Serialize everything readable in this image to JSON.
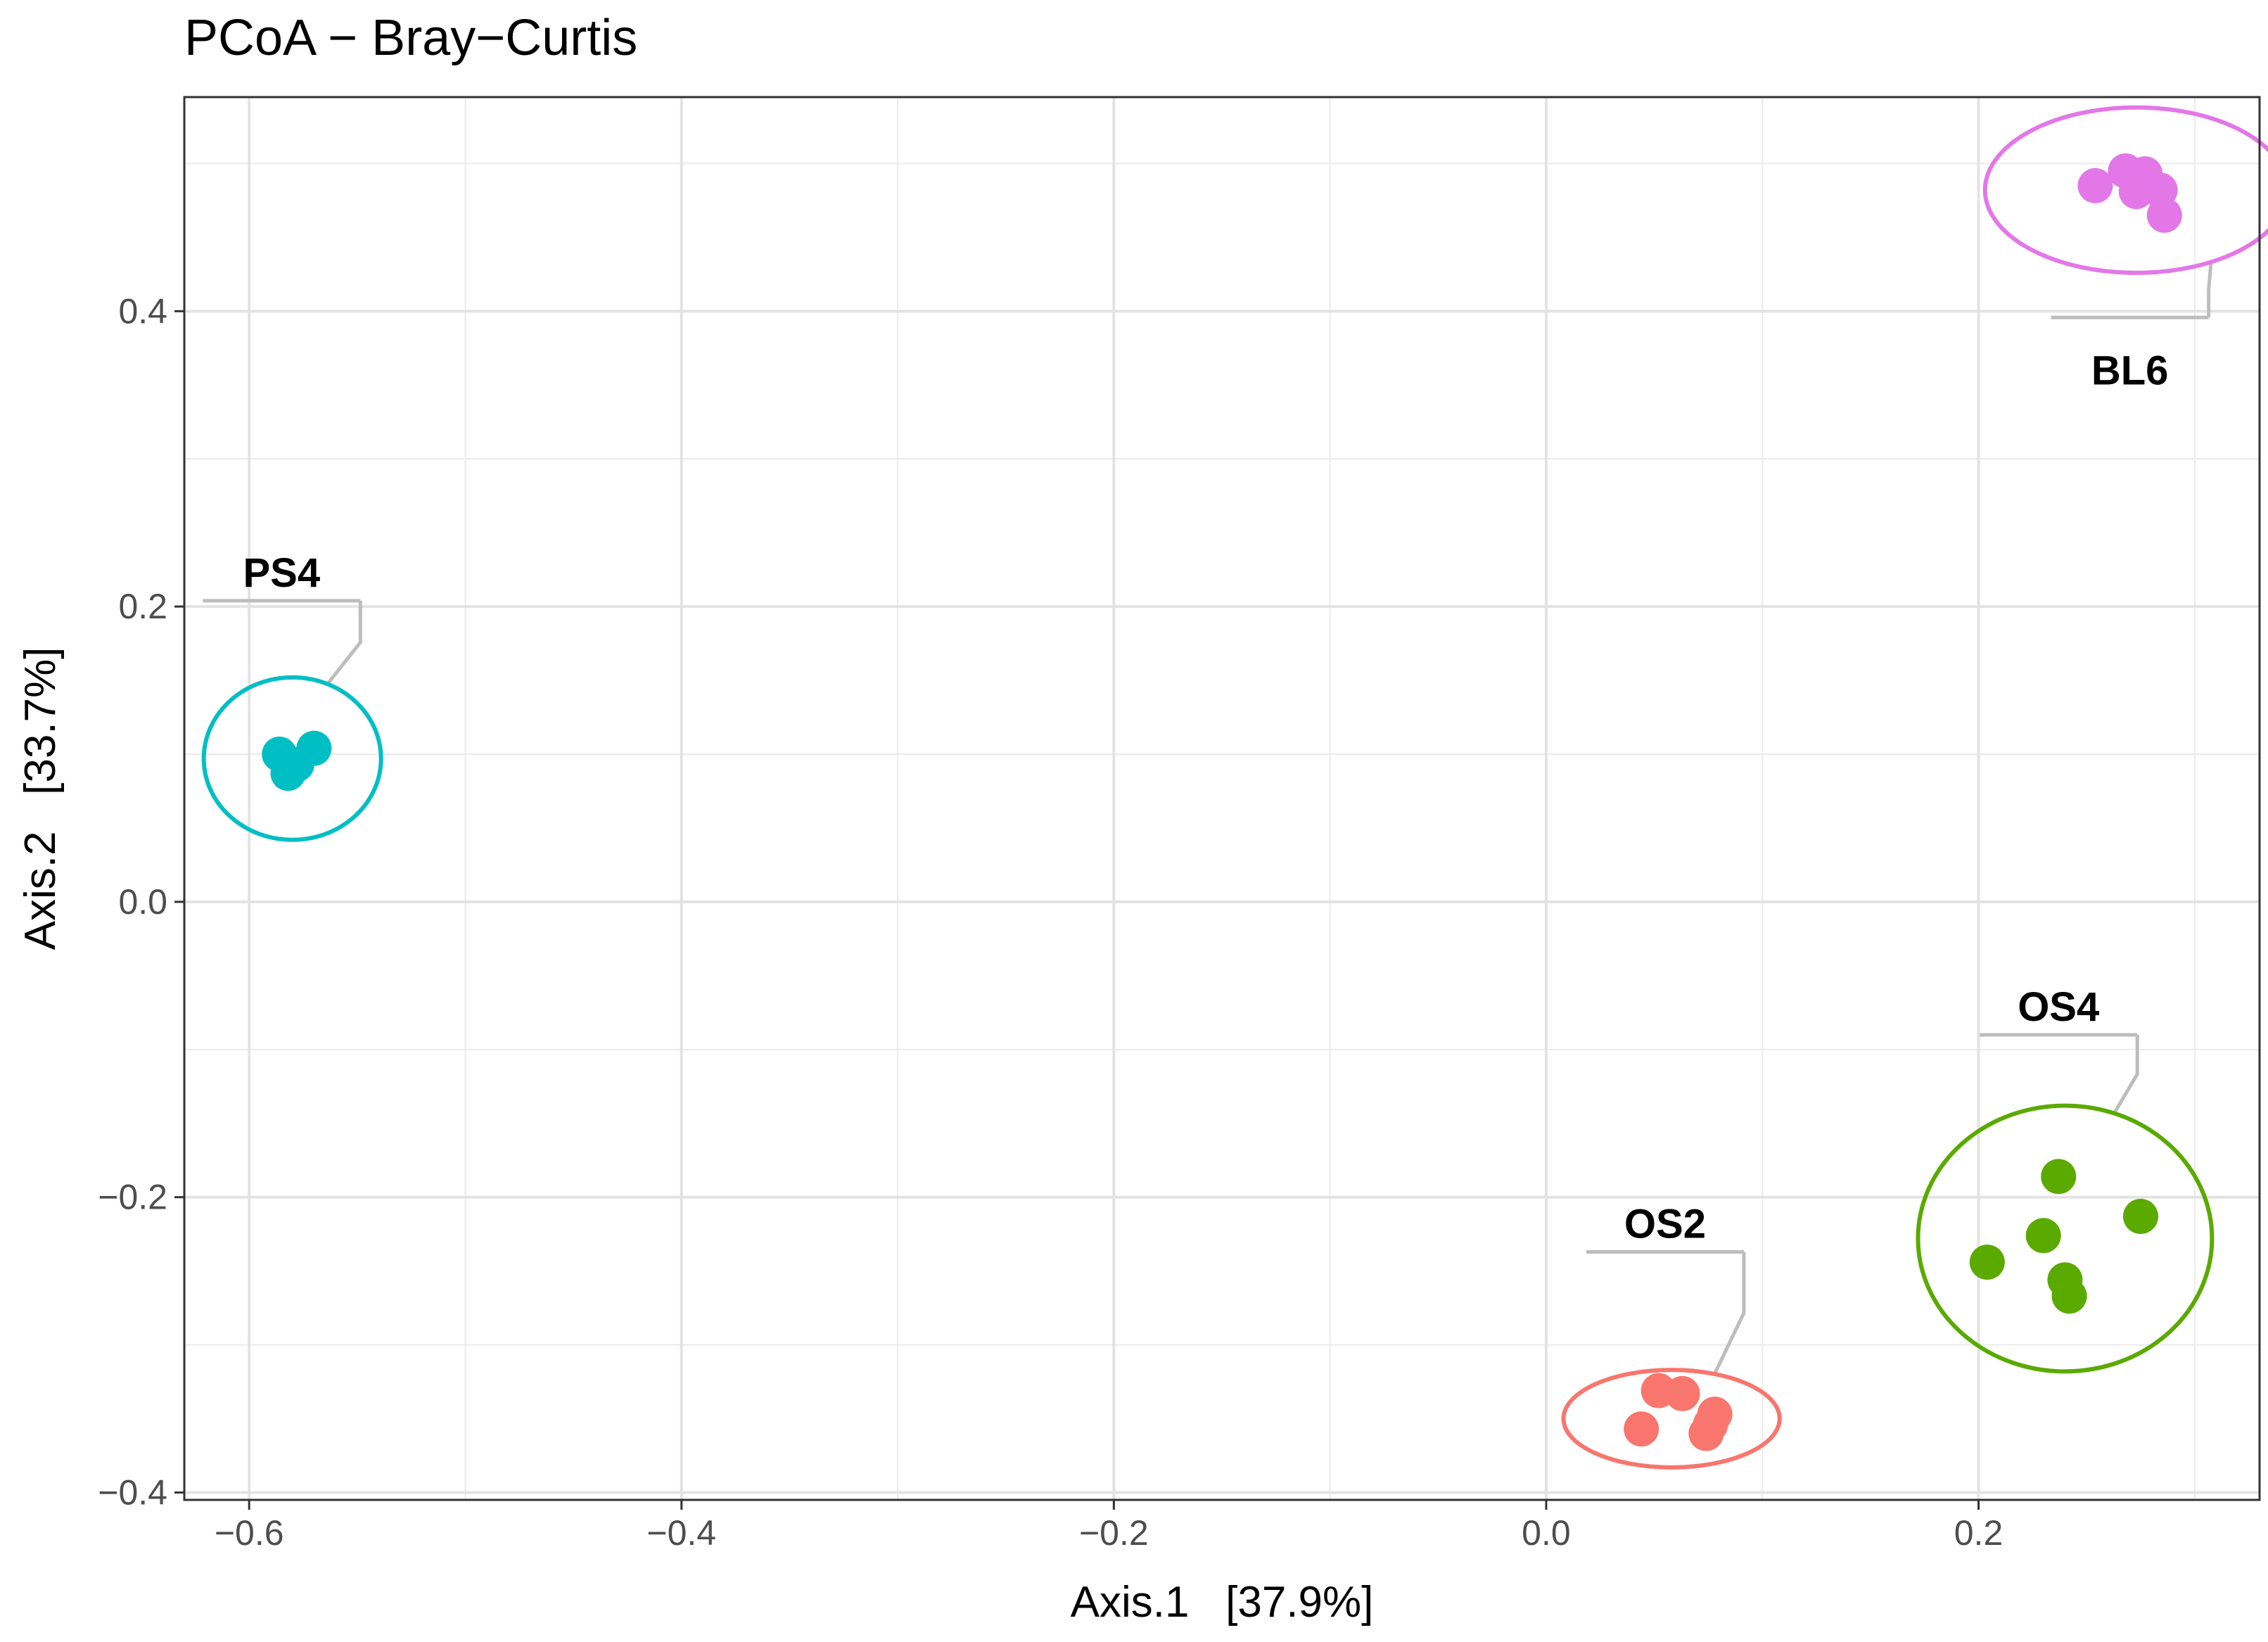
{
  "chart_data": {
    "type": "scatter",
    "title": "PCoA − Bray−Curtis",
    "xlabel": "Axis.1   [37.9%]",
    "ylabel": "Axis.2   [33.7%]",
    "xlim": [
      -0.63,
      0.33
    ],
    "ylim": [
      -0.405,
      0.545
    ],
    "x_ticks": [
      -0.6,
      -0.4,
      -0.2,
      0.0,
      0.2
    ],
    "x_tick_labels": [
      "−0.6",
      "−0.4",
      "−0.2",
      "0.0",
      "0.2"
    ],
    "y_ticks": [
      -0.4,
      -0.2,
      0.0,
      0.2,
      0.4
    ],
    "y_tick_labels": [
      "−0.4",
      "−0.2",
      "0.0",
      "0.2",
      "0.4"
    ],
    "grid": true,
    "legend": "none",
    "series": [
      {
        "name": "BL6",
        "color": "#e377e8",
        "points": [
          [
            0.254,
            0.485
          ],
          [
            0.268,
            0.495
          ],
          [
            0.277,
            0.493
          ],
          [
            0.273,
            0.481
          ],
          [
            0.284,
            0.482
          ],
          [
            0.286,
            0.465
          ]
        ],
        "ellipse": {
          "cx": 0.273,
          "cy": 0.482,
          "rx": 0.07,
          "ry": 0.056
        },
        "label_pos": [
          0.27,
          0.36
        ]
      },
      {
        "name": "PS4",
        "color": "#00bfc4",
        "points": [
          [
            -0.586,
            0.1
          ],
          [
            -0.578,
            0.093
          ],
          [
            -0.582,
            0.087
          ],
          [
            -0.57,
            0.104
          ]
        ],
        "ellipse": {
          "cx": -0.58,
          "cy": 0.097,
          "rx": 0.041,
          "ry": 0.055
        },
        "label_pos": [
          -0.585,
          0.223
        ]
      },
      {
        "name": "OS2",
        "color": "#f8766d",
        "points": [
          [
            0.052,
            -0.331
          ],
          [
            0.063,
            -0.333
          ],
          [
            0.078,
            -0.347
          ],
          [
            0.044,
            -0.357
          ],
          [
            0.074,
            -0.36
          ],
          [
            0.076,
            -0.354
          ]
        ],
        "ellipse": {
          "cx": 0.058,
          "cy": -0.35,
          "rx": 0.05,
          "ry": 0.033
        },
        "label_pos": [
          0.055,
          -0.218
        ]
      },
      {
        "name": "OS4",
        "color": "#5aaa00",
        "points": [
          [
            0.237,
            -0.186
          ],
          [
            0.275,
            -0.213
          ],
          [
            0.23,
            -0.226
          ],
          [
            0.204,
            -0.244
          ],
          [
            0.24,
            -0.256
          ],
          [
            0.242,
            -0.267
          ]
        ],
        "ellipse": {
          "cx": 0.24,
          "cy": -0.228,
          "rx": 0.068,
          "ry": 0.09
        },
        "label_pos": [
          0.237,
          -0.071
        ]
      }
    ]
  }
}
